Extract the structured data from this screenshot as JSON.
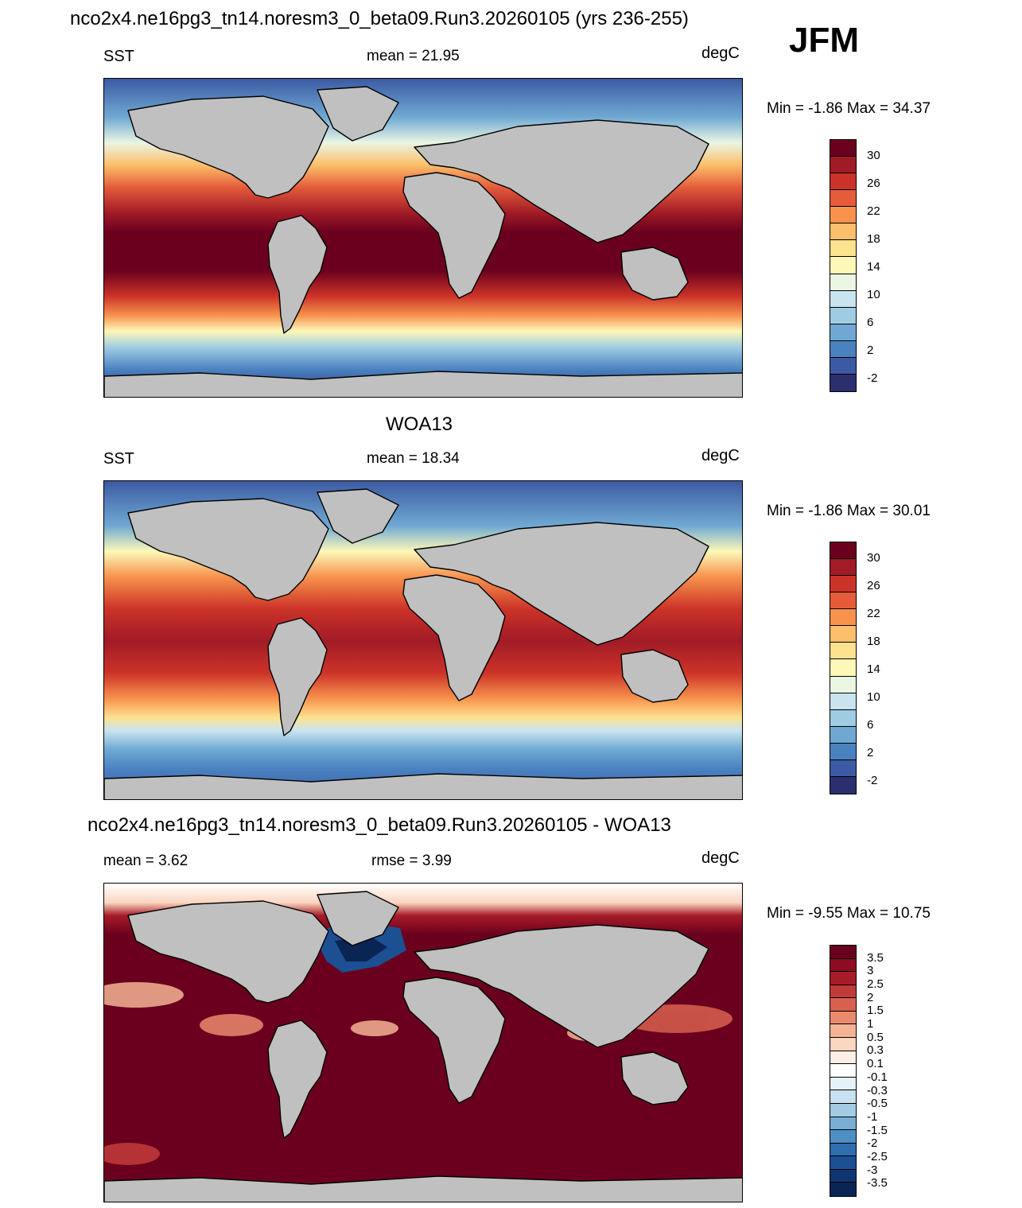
{
  "header": {
    "title": "nco2x4.ne16pg3_tn14.noresm3_0_beta09.Run3.20260105 (yrs 236-255)",
    "season": "JFM"
  },
  "colors": {
    "land": "#c0c0c0",
    "outline": "#000000",
    "sst_scale": [
      "#6a001e",
      "#a11b27",
      "#cc3328",
      "#e45c3a",
      "#f7924d",
      "#fcbf6b",
      "#fde28f",
      "#fdf8b8",
      "#eaf5e3",
      "#c9e4ef",
      "#9fcce3",
      "#6fa9d3",
      "#4a82c0",
      "#3c5aa3",
      "#2b2f6e"
    ],
    "diff_scale": [
      "#6a001e",
      "#8d0c23",
      "#a61c28",
      "#c23b3b",
      "#d8604f",
      "#e98a6f",
      "#f5b395",
      "#fad5c0",
      "#fdefe6",
      "#ffffff",
      "#e6f1f8",
      "#c8e0ef",
      "#a3cbe4",
      "#79afd5",
      "#4f8fc4",
      "#2f6eaf",
      "#1d4f93",
      "#0f3672",
      "#0a2454"
    ]
  },
  "panels": [
    {
      "title": "",
      "left": "SST",
      "center": "mean =  21.95",
      "right": "degC",
      "minmax": "Min =  -1.86 Max =  34.37",
      "scale": "sst",
      "ticks": [
        "30",
        "26",
        "22",
        "18",
        "14",
        "10",
        "6",
        "2",
        "-2"
      ]
    },
    {
      "title": "WOA13",
      "left": "SST",
      "center": "mean =  18.34",
      "right": "degC",
      "minmax": "Min =  -1.86 Max =  30.01",
      "scale": "sst",
      "ticks": [
        "30",
        "26",
        "22",
        "18",
        "14",
        "10",
        "6",
        "2",
        "-2"
      ]
    },
    {
      "title": "nco2x4.ne16pg3_tn14.noresm3_0_beta09.Run3.20260105 - WOA13",
      "left": "mean =   3.62",
      "center": "rmse =   3.99",
      "right": "degC",
      "minmax": "Min =  -9.55 Max =  10.75",
      "scale": "diff",
      "ticks": [
        "3.5",
        "3",
        "2.5",
        "2",
        "1.5",
        "1",
        "0.5",
        "0.3",
        "0.1",
        "-0.1",
        "-0.3",
        "-0.5",
        "-1",
        "-1.5",
        "-2",
        "-2.5",
        "-3",
        "-3.5"
      ]
    }
  ]
}
